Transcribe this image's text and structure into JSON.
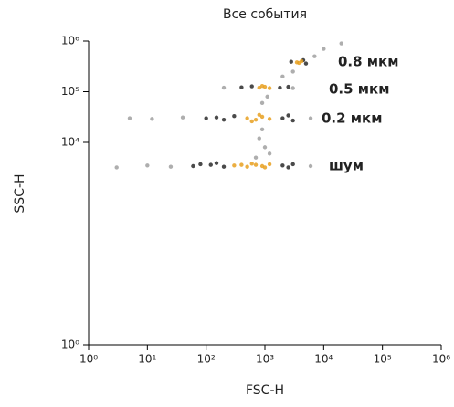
{
  "chart_data": {
    "type": "scatter",
    "title": "Все события",
    "x_label": "FSC-H",
    "y_label": "SSC-H",
    "log_x": true,
    "log_y": true,
    "xlim": [
      1,
      1000000
    ],
    "ylim": [
      1,
      1000000
    ],
    "xticks": [
      {
        "value": 1,
        "label": "10⁰"
      },
      {
        "value": 10,
        "label": "10¹"
      },
      {
        "value": 100,
        "label": "10²"
      },
      {
        "value": 1000,
        "label": "10³"
      },
      {
        "value": 10000,
        "label": "10⁴"
      },
      {
        "value": 100000,
        "label": "10⁵"
      },
      {
        "value": 1000000,
        "label": "10⁶"
      }
    ],
    "yticks": [
      {
        "value": 1,
        "label": "10⁰"
      },
      {
        "value": 10000,
        "label": "10⁴"
      },
      {
        "value": 100000,
        "label": "10⁵"
      },
      {
        "value": 1000000,
        "label": "10⁶"
      }
    ],
    "annotations": [
      "0.8 мкм",
      "0.5 мкм",
      "0.2 мкм",
      "шум"
    ],
    "series": [
      {
        "color": "#a0a0a0",
        "x": [
          3,
          10,
          25,
          6000,
          1000,
          800,
          1200,
          900,
          1100,
          5,
          12,
          40,
          6000,
          200,
          3000,
          2000,
          3000,
          7000,
          10000,
          900,
          700,
          20000
        ],
        "y": [
          3200,
          3500,
          3300,
          3400,
          8000,
          12000,
          6000,
          60000,
          80000,
          30000,
          29000,
          31000,
          30000,
          120000,
          118000,
          200000,
          250000,
          500000,
          700000,
          18000,
          5000,
          900000
        ]
      },
      {
        "color": "#2a2a2a",
        "x": [
          60,
          120,
          200,
          2000,
          3000,
          150,
          2500,
          80,
          100,
          200,
          300,
          2000,
          3000,
          2500,
          150,
          400,
          600,
          1800,
          2500,
          2800,
          5000,
          4500
        ],
        "y": [
          3400,
          3600,
          3300,
          3500,
          3700,
          3900,
          3200,
          3700,
          30000,
          28000,
          33000,
          30000,
          27000,
          34000,
          31000,
          122000,
          128000,
          120000,
          125000,
          390000,
          360000,
          420000
        ]
      },
      {
        "color": "#e8a020",
        "x": [
          300,
          500,
          700,
          900,
          1200,
          600,
          400,
          1000,
          500,
          700,
          900,
          1200,
          800,
          600,
          800,
          1000,
          1200,
          900,
          3500,
          4200,
          3800
        ],
        "y": [
          3500,
          3300,
          3600,
          3400,
          3700,
          3800,
          3600,
          3200,
          30000,
          28000,
          32000,
          29000,
          35000,
          26000,
          120000,
          125000,
          118000,
          130000,
          380000,
          400000,
          370000
        ]
      }
    ]
  }
}
